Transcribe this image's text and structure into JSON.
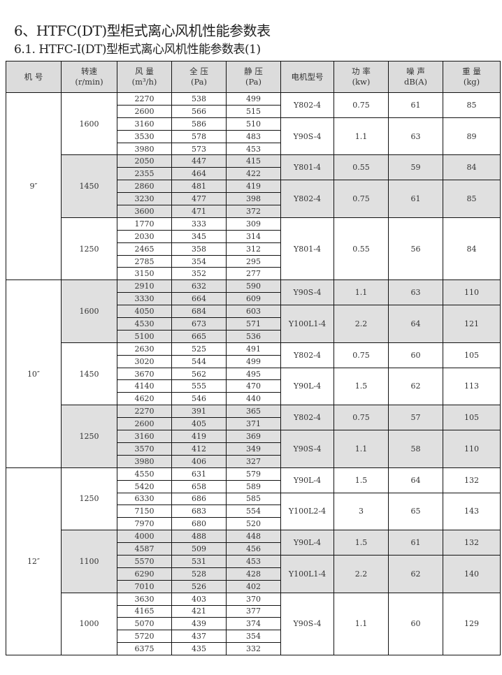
{
  "title": "6、HTFC(DT)型柜式离心风机性能参数表",
  "subtitle": "6.1. HTFC-I(DT)型柜式离心风机性能参数表(1)",
  "colors": {
    "header_bg": "#dcdcdc",
    "shade_bg": "#e0e0e0",
    "border": "#111111"
  },
  "headers": [
    {
      "l1": "机 号",
      "l2": ""
    },
    {
      "l1": "转速",
      "l2": "(r/min)"
    },
    {
      "l1": "风 量",
      "l2": "(m³/h)"
    },
    {
      "l1": "全 压",
      "l2": "(Pa)"
    },
    {
      "l1": "静 压",
      "l2": "(Pa)"
    },
    {
      "l1": "电机型号",
      "l2": ""
    },
    {
      "l1": "功 率",
      "l2": "(kw)"
    },
    {
      "l1": "噪 声",
      "l2": "dB(A)"
    },
    {
      "l1": "重 量",
      "l2": "(kg)"
    }
  ],
  "fans": [
    {
      "model": "9″",
      "speeds": [
        {
          "rpm": "1600",
          "shaded": false,
          "motors": [
            {
              "motor": "Y802-4",
              "power": "0.75",
              "noise": "61",
              "weight": "85",
              "points": [
                [
                  "2270",
                  "538",
                  "499"
                ],
                [
                  "2600",
                  "566",
                  "515"
                ]
              ]
            },
            {
              "motor": "Y90S-4",
              "power": "1.1",
              "noise": "63",
              "weight": "89",
              "points": [
                [
                  "3160",
                  "586",
                  "510"
                ],
                [
                  "3530",
                  "578",
                  "483"
                ],
                [
                  "3980",
                  "573",
                  "453"
                ]
              ]
            }
          ]
        },
        {
          "rpm": "1450",
          "shaded": true,
          "motors": [
            {
              "motor": "Y801-4",
              "power": "0.55",
              "noise": "59",
              "weight": "84",
              "points": [
                [
                  "2050",
                  "447",
                  "415"
                ],
                [
                  "2355",
                  "464",
                  "422"
                ]
              ]
            },
            {
              "motor": "Y802-4",
              "power": "0.75",
              "noise": "61",
              "weight": "85",
              "points": [
                [
                  "2860",
                  "481",
                  "419"
                ],
                [
                  "3230",
                  "477",
                  "398"
                ],
                [
                  "3600",
                  "471",
                  "372"
                ]
              ]
            }
          ]
        },
        {
          "rpm": "1250",
          "shaded": false,
          "motors": [
            {
              "motor": "Y801-4",
              "power": "0.55",
              "noise": "56",
              "weight": "84",
              "points": [
                [
                  "1770",
                  "333",
                  "309"
                ],
                [
                  "2030",
                  "345",
                  "314"
                ],
                [
                  "2465",
                  "358",
                  "312"
                ],
                [
                  "2785",
                  "354",
                  "295"
                ],
                [
                  "3150",
                  "352",
                  "277"
                ]
              ]
            }
          ]
        }
      ]
    },
    {
      "model": "10″",
      "speeds": [
        {
          "rpm": "1600",
          "shaded": true,
          "motors": [
            {
              "motor": "Y90S-4",
              "power": "1.1",
              "noise": "63",
              "weight": "110",
              "points": [
                [
                  "2910",
                  "632",
                  "590"
                ],
                [
                  "3330",
                  "664",
                  "609"
                ]
              ]
            },
            {
              "motor": "Y100L1-4",
              "power": "2.2",
              "noise": "64",
              "weight": "121",
              "points": [
                [
                  "4050",
                  "684",
                  "603"
                ],
                [
                  "4530",
                  "673",
                  "571"
                ],
                [
                  "5100",
                  "665",
                  "536"
                ]
              ]
            }
          ]
        },
        {
          "rpm": "1450",
          "shaded": false,
          "motors": [
            {
              "motor": "Y802-4",
              "power": "0.75",
              "noise": "60",
              "weight": "105",
              "points": [
                [
                  "2630",
                  "525",
                  "491"
                ],
                [
                  "3020",
                  "544",
                  "499"
                ]
              ]
            },
            {
              "motor": "Y90L-4",
              "power": "1.5",
              "noise": "62",
              "weight": "113",
              "points": [
                [
                  "3670",
                  "562",
                  "495"
                ],
                [
                  "4140",
                  "555",
                  "470"
                ],
                [
                  "4620",
                  "546",
                  "440"
                ]
              ]
            }
          ]
        },
        {
          "rpm": "1250",
          "shaded": true,
          "motors": [
            {
              "motor": "Y802-4",
              "power": "0.75",
              "noise": "57",
              "weight": "105",
              "points": [
                [
                  "2270",
                  "391",
                  "365"
                ],
                [
                  "2600",
                  "405",
                  "371"
                ]
              ]
            },
            {
              "motor": "Y90S-4",
              "power": "1.1",
              "noise": "58",
              "weight": "110",
              "points": [
                [
                  "3160",
                  "419",
                  "369"
                ],
                [
                  "3570",
                  "412",
                  "349"
                ],
                [
                  "3980",
                  "406",
                  "327"
                ]
              ]
            }
          ]
        }
      ]
    },
    {
      "model": "12″",
      "speeds": [
        {
          "rpm": "1250",
          "shaded": false,
          "motors": [
            {
              "motor": "Y90L-4",
              "power": "1.5",
              "noise": "64",
              "weight": "132",
              "points": [
                [
                  "4550",
                  "631",
                  "579"
                ],
                [
                  "5420",
                  "658",
                  "589"
                ]
              ]
            },
            {
              "motor": "Y100L2-4",
              "power": "3",
              "noise": "65",
              "weight": "143",
              "points": [
                [
                  "6330",
                  "686",
                  "585"
                ],
                [
                  "7150",
                  "683",
                  "554"
                ],
                [
                  "7970",
                  "680",
                  "520"
                ]
              ]
            }
          ]
        },
        {
          "rpm": "1100",
          "shaded": true,
          "motors": [
            {
              "motor": "Y90L-4",
              "power": "1.5",
              "noise": "61",
              "weight": "132",
              "points": [
                [
                  "4000",
                  "488",
                  "448"
                ],
                [
                  "4587",
                  "509",
                  "456"
                ]
              ]
            },
            {
              "motor": "Y100L1-4",
              "power": "2.2",
              "noise": "62",
              "weight": "140",
              "points": [
                [
                  "5570",
                  "531",
                  "453"
                ],
                [
                  "6290",
                  "528",
                  "428"
                ],
                [
                  "7010",
                  "526",
                  "402"
                ]
              ]
            }
          ]
        },
        {
          "rpm": "1000",
          "shaded": false,
          "motors": [
            {
              "motor": "Y90S-4",
              "power": "1.1",
              "noise": "60",
              "weight": "129",
              "points": [
                [
                  "3630",
                  "403",
                  "370"
                ],
                [
                  "4165",
                  "421",
                  "377"
                ],
                [
                  "5070",
                  "439",
                  "374"
                ],
                [
                  "5720",
                  "437",
                  "354"
                ],
                [
                  "6375",
                  "435",
                  "332"
                ]
              ]
            }
          ]
        }
      ]
    }
  ]
}
